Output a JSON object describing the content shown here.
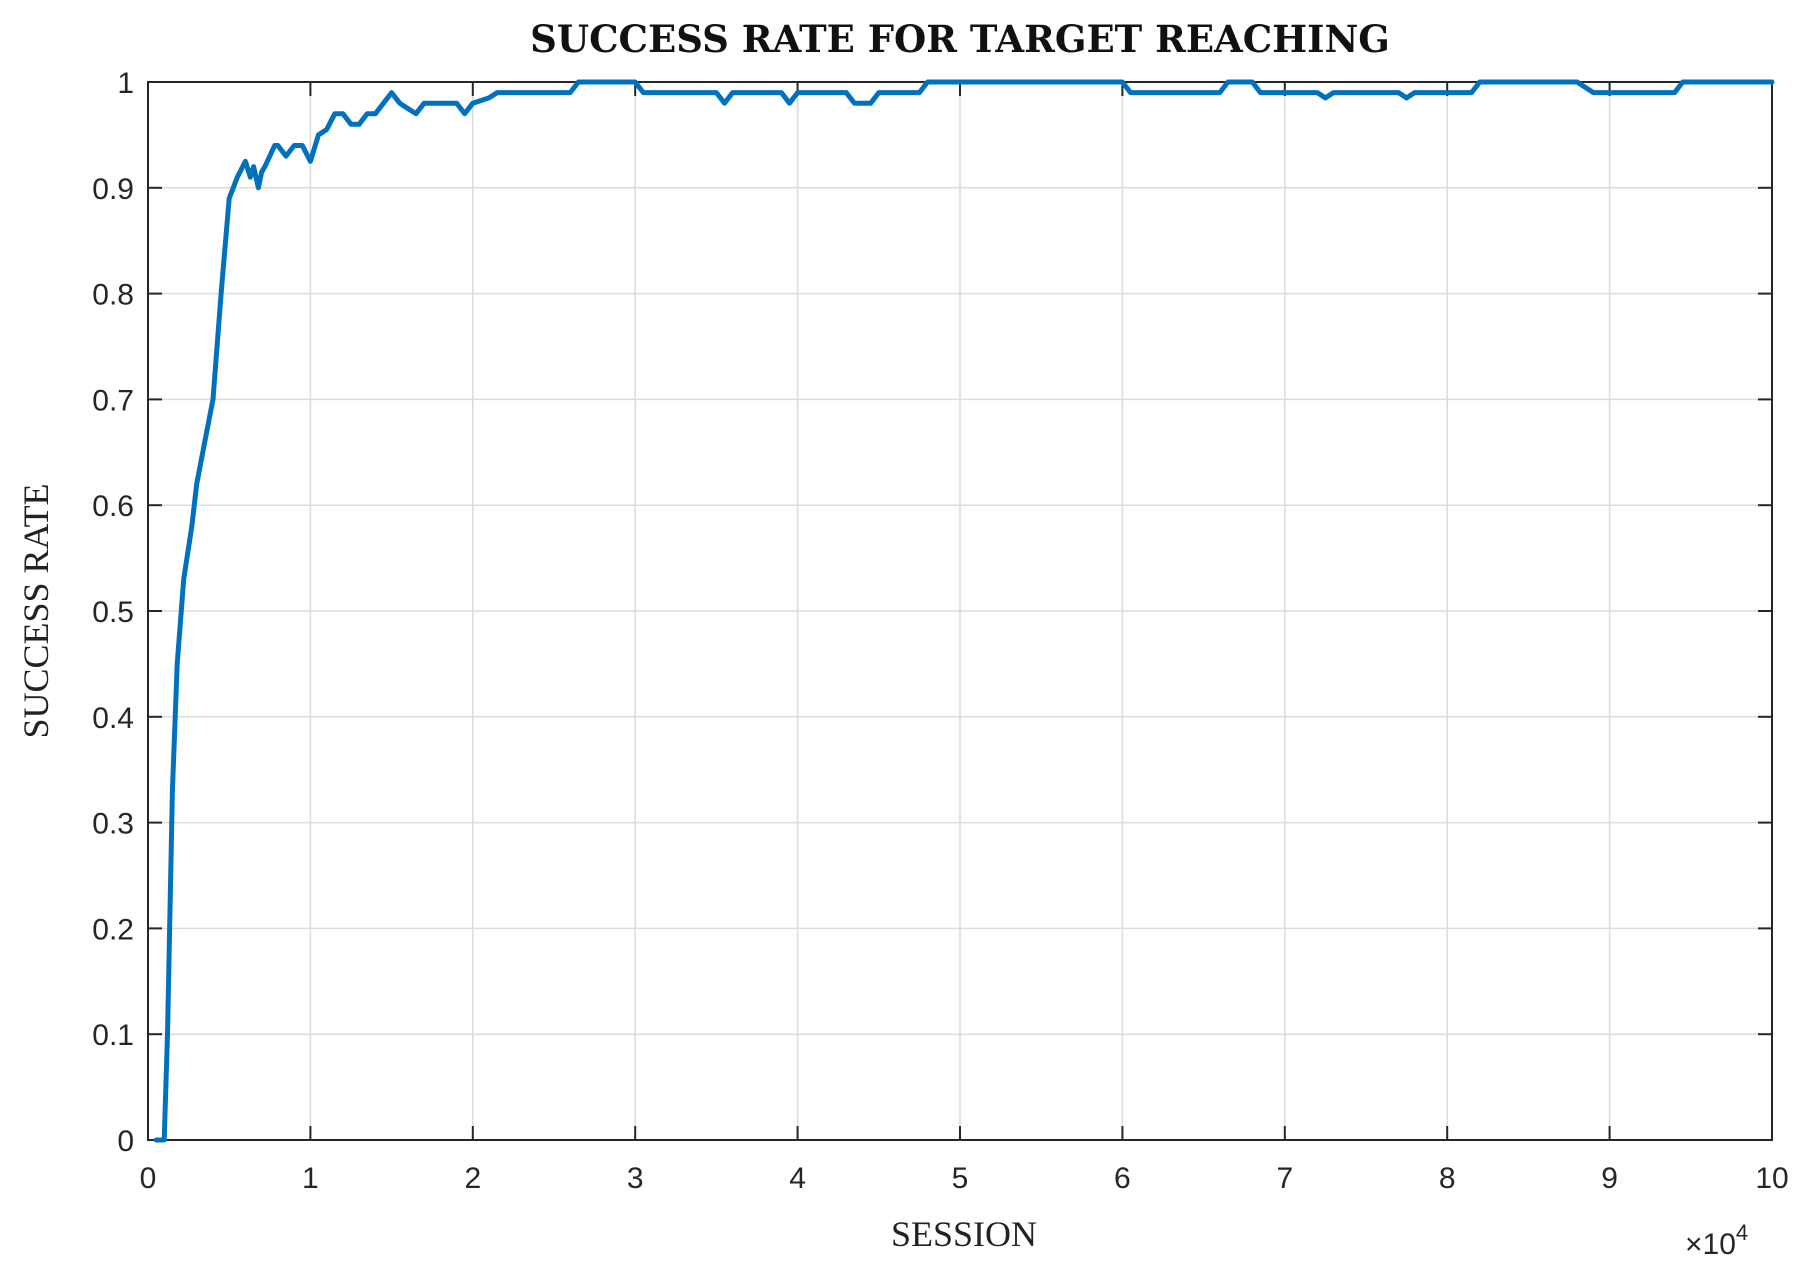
{
  "chart_data": {
    "type": "line",
    "title": "SUCCESS RATE FOR TARGET REACHING",
    "xlabel": "SESSION",
    "ylabel": "SUCCESS RATE",
    "x_multiplier_label": {
      "base": "×10",
      "exponent": "4"
    },
    "xlim": [
      0,
      10
    ],
    "ylim": [
      0,
      1
    ],
    "x_ticks": [
      0,
      1,
      2,
      3,
      4,
      5,
      6,
      7,
      8,
      9,
      10
    ],
    "x_tick_labels": [
      "0",
      "1",
      "2",
      "3",
      "4",
      "5",
      "6",
      "7",
      "8",
      "9",
      "10"
    ],
    "y_ticks": [
      0,
      0.1,
      0.2,
      0.3,
      0.4,
      0.5,
      0.6,
      0.7,
      0.8,
      0.9,
      1
    ],
    "y_tick_labels": [
      "0",
      "0.1",
      "0.2",
      "0.3",
      "0.4",
      "0.5",
      "0.6",
      "0.7",
      "0.8",
      "0.9",
      "1"
    ],
    "grid": true,
    "line_color": "#0072BD",
    "series": [
      {
        "x": [
          0.05,
          0.1,
          0.12,
          0.15,
          0.18,
          0.22,
          0.27,
          0.3,
          0.35,
          0.4,
          0.45,
          0.5,
          0.55,
          0.6,
          0.63,
          0.65,
          0.68,
          0.7,
          0.72,
          0.75,
          0.78,
          0.8,
          0.85,
          0.9,
          0.95,
          1.0,
          1.05,
          1.1,
          1.15,
          1.18,
          1.2,
          1.25,
          1.3,
          1.35,
          1.4,
          1.45,
          1.5,
          1.55,
          1.6,
          1.65,
          1.7,
          1.75,
          1.8,
          1.85,
          1.9,
          1.95,
          2.0,
          2.1,
          2.15,
          2.2,
          2.25,
          2.3,
          2.35,
          2.4,
          2.6,
          2.65,
          2.7,
          2.75,
          3.0,
          3.05,
          3.1,
          3.2,
          3.5,
          3.55,
          3.6,
          3.65,
          3.9,
          3.95,
          4.0,
          4.05,
          4.3,
          4.35,
          4.45,
          4.5,
          4.55,
          4.75,
          4.8,
          4.85,
          5.0,
          5.5,
          6.0,
          6.05,
          6.1,
          6.15,
          6.6,
          6.65,
          6.8,
          6.85,
          7.2,
          7.25,
          7.3,
          7.35,
          7.7,
          7.75,
          7.8,
          7.85,
          8.15,
          8.2,
          8.25,
          8.5,
          8.8,
          8.85,
          8.9,
          8.95,
          9.4,
          9.45,
          9.5,
          9.7,
          10.0
        ],
        "values": [
          0.0,
          0.0,
          0.1,
          0.33,
          0.45,
          0.53,
          0.58,
          0.62,
          0.66,
          0.7,
          0.8,
          0.89,
          0.91,
          0.925,
          0.91,
          0.92,
          0.9,
          0.915,
          0.92,
          0.93,
          0.94,
          0.94,
          0.93,
          0.94,
          0.94,
          0.925,
          0.95,
          0.955,
          0.97,
          0.97,
          0.97,
          0.96,
          0.96,
          0.97,
          0.97,
          0.98,
          0.99,
          0.98,
          0.975,
          0.97,
          0.98,
          0.98,
          0.98,
          0.98,
          0.98,
          0.97,
          0.98,
          0.985,
          0.99,
          0.99,
          0.99,
          0.99,
          0.99,
          0.99,
          0.99,
          1.0,
          1.0,
          1.0,
          1.0,
          0.99,
          0.99,
          0.99,
          0.99,
          0.98,
          0.99,
          0.99,
          0.99,
          0.98,
          0.99,
          0.99,
          0.99,
          0.98,
          0.98,
          0.99,
          0.99,
          0.99,
          1.0,
          1.0,
          1.0,
          1.0,
          1.0,
          0.99,
          0.99,
          0.99,
          0.99,
          1.0,
          1.0,
          0.99,
          0.99,
          0.985,
          0.99,
          0.99,
          0.99,
          0.985,
          0.99,
          0.99,
          0.99,
          1.0,
          1.0,
          1.0,
          1.0,
          0.995,
          0.99,
          0.99,
          0.99,
          1.0,
          1.0,
          1.0,
          1.0
        ]
      }
    ]
  }
}
